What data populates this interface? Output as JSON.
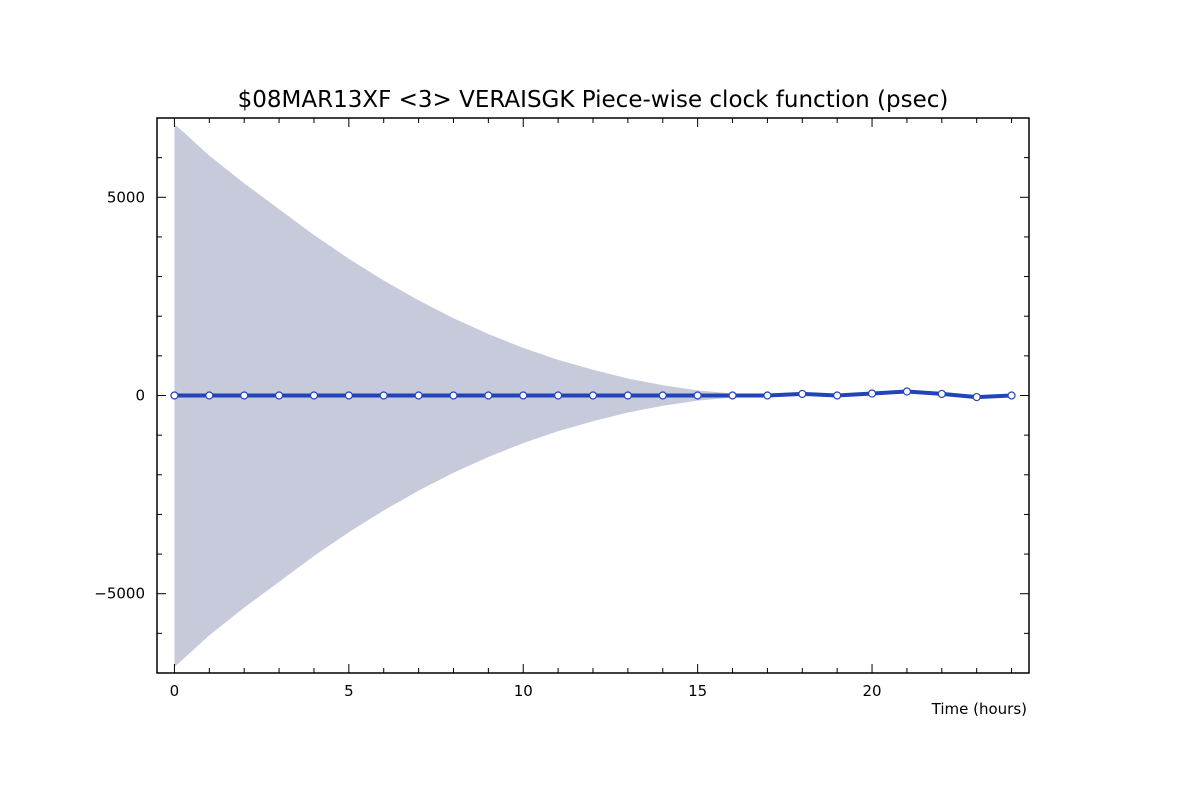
{
  "chart_data": {
    "type": "line",
    "title": "$08MAR13XF <3>  VERAISGK  Piece-wise clock function (psec)",
    "xlabel": "Time (hours)",
    "ylabel": "",
    "xlim": [
      -0.5,
      24.5
    ],
    "ylim": [
      -7000,
      7000
    ],
    "x_ticks": [
      0,
      5,
      10,
      15,
      20
    ],
    "x_tick_labels": [
      "0",
      "5",
      "10",
      "15",
      "20"
    ],
    "y_ticks": [
      -5000,
      0,
      5000
    ],
    "y_tick_labels": [
      "−5000",
      "0",
      "5000"
    ],
    "grid": false,
    "legend": "none",
    "colors": {
      "line": "#2244bb",
      "band": "#c7cadb",
      "marker_fill": "#ffffff",
      "marker_stroke": "#2244bb"
    },
    "series": [
      {
        "x": [
          0,
          1,
          2,
          3,
          4,
          5,
          6,
          7,
          8,
          9,
          10,
          11,
          12,
          13,
          14,
          15,
          16,
          17,
          18,
          19,
          20,
          21,
          22,
          23,
          24
        ],
        "values": [
          0,
          0,
          0,
          0,
          0,
          0,
          0,
          0,
          0,
          0,
          0,
          0,
          0,
          0,
          0,
          0,
          0,
          0,
          40,
          0,
          50,
          100,
          40,
          -40,
          0
        ]
      }
    ],
    "uncertainty_band": {
      "x": [
        0,
        1,
        2,
        3,
        4,
        5,
        6,
        7,
        8,
        9,
        10,
        11,
        12,
        13,
        14,
        15,
        16,
        17,
        18,
        19,
        20,
        21,
        22,
        23,
        24
      ],
      "halfwidth": [
        6850,
        6050,
        5350,
        4700,
        4050,
        3450,
        2900,
        2400,
        1950,
        1550,
        1200,
        900,
        650,
        430,
        260,
        130,
        50,
        0,
        0,
        0,
        0,
        0,
        0,
        0,
        0
      ]
    }
  }
}
